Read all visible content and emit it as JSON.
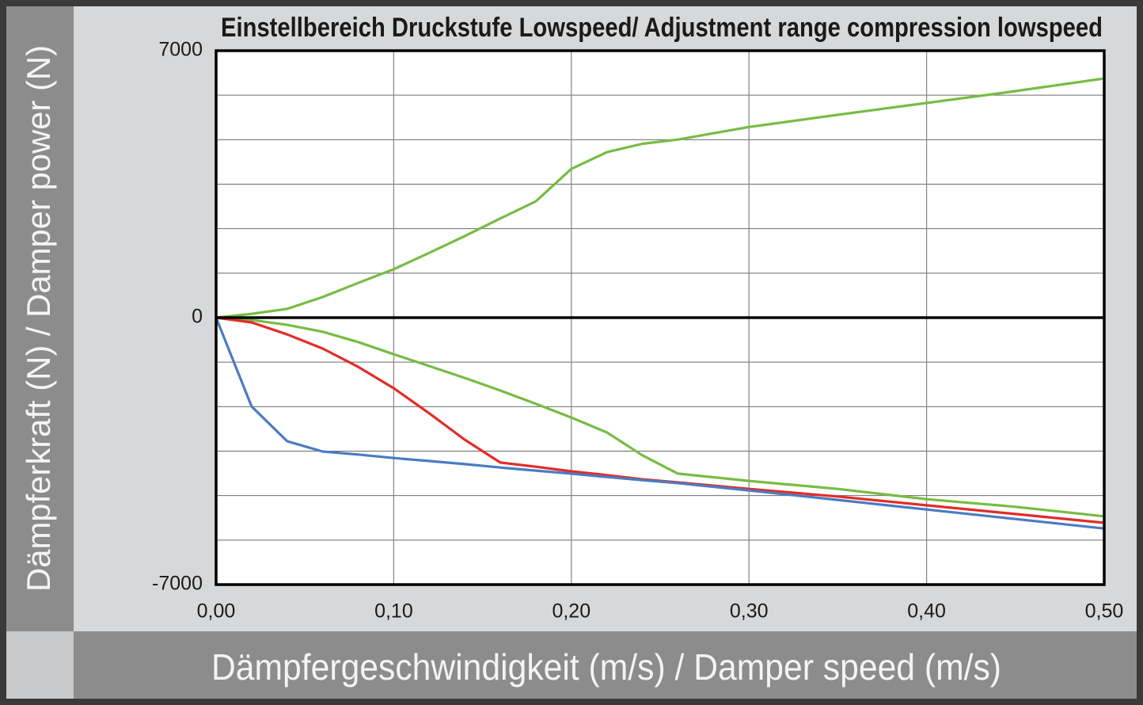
{
  "chart_data": {
    "type": "line",
    "title": "Einstellbereich Druckstufe Lowspeed/ Adjustment range compression lowspeed",
    "x_label": "Dämpfergeschwindigkeit (m/s) / Damper speed (m/s)",
    "y_label": "Dämpferkraft (N) / Damper power (N)",
    "x": [
      0,
      0.02,
      0.04,
      0.06,
      0.08,
      0.1,
      0.12,
      0.14,
      0.16,
      0.18,
      0.2,
      0.22,
      0.24,
      0.26,
      0.3,
      0.35,
      0.4,
      0.45,
      0.5
    ],
    "series": [
      {
        "color": "#77bc43",
        "values": [
          0,
          100,
          230,
          540,
          910,
          1270,
          1700,
          2140,
          2600,
          3050,
          3900,
          4340,
          4560,
          4670,
          5000,
          5320,
          5630,
          5940,
          6270
        ]
      },
      {
        "color": "#77bc43",
        "values": [
          0,
          -60,
          -190,
          -370,
          -640,
          -960,
          -1270,
          -1580,
          -1910,
          -2260,
          -2620,
          -3010,
          -3610,
          -4090,
          -4280,
          -4490,
          -4760,
          -4960,
          -5210
        ]
      },
      {
        "color": "#e32b2b",
        "values": [
          0,
          -125,
          -440,
          -810,
          -1290,
          -1850,
          -2510,
          -3200,
          -3800,
          -3910,
          -4030,
          -4130,
          -4240,
          -4320,
          -4490,
          -4690,
          -4920,
          -5150,
          -5380
        ]
      },
      {
        "color": "#4a7cc1",
        "values": [
          0,
          -2330,
          -3240,
          -3510,
          -3590,
          -3680,
          -3760,
          -3840,
          -3930,
          -4010,
          -4090,
          -4180,
          -4260,
          -4340,
          -4530,
          -4780,
          -5030,
          -5280,
          -5530
        ]
      }
    ],
    "xlim": [
      0,
      0.5
    ],
    "xticks": [
      {
        "value": 0,
        "label": "0,00"
      },
      {
        "value": 0.1,
        "label": "0,10"
      },
      {
        "value": 0.2,
        "label": "0,20"
      },
      {
        "value": 0.3,
        "label": "0,30"
      },
      {
        "value": 0.4,
        "label": "0,40"
      },
      {
        "value": 0.5,
        "label": "0,50"
      }
    ],
    "ylim": [
      -7000,
      7000
    ],
    "yticks": [
      7000,
      0,
      -7000
    ],
    "grid": true
  }
}
